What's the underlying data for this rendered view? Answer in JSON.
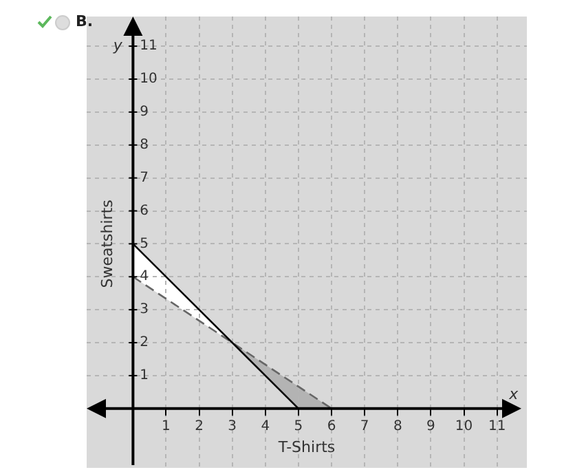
{
  "chart_data": {
    "type": "line",
    "xlabel": "T-Shirts",
    "ylabel": "Sweatshirts",
    "annotations": [
      "B.",
      "y",
      "x"
    ],
    "xlim": [
      -1.4,
      11.9
    ],
    "ylim": [
      -1.8,
      11.9
    ],
    "xticks": [
      1,
      2,
      3,
      4,
      5,
      6,
      7,
      8,
      9,
      10,
      11
    ],
    "yticks": [
      1,
      2,
      3,
      4,
      5,
      6,
      7,
      8,
      9,
      10,
      11
    ],
    "grid": true,
    "legend": false,
    "marker": "none",
    "series": [
      {
        "color": "#000000",
        "x": [
          0,
          5
        ],
        "values": [
          5,
          0
        ],
        "line_style": "solid"
      },
      {
        "color": "#666666",
        "x": [
          0,
          6
        ],
        "values": [
          4,
          0
        ],
        "line_style": "dashed"
      }
    ]
  }
}
